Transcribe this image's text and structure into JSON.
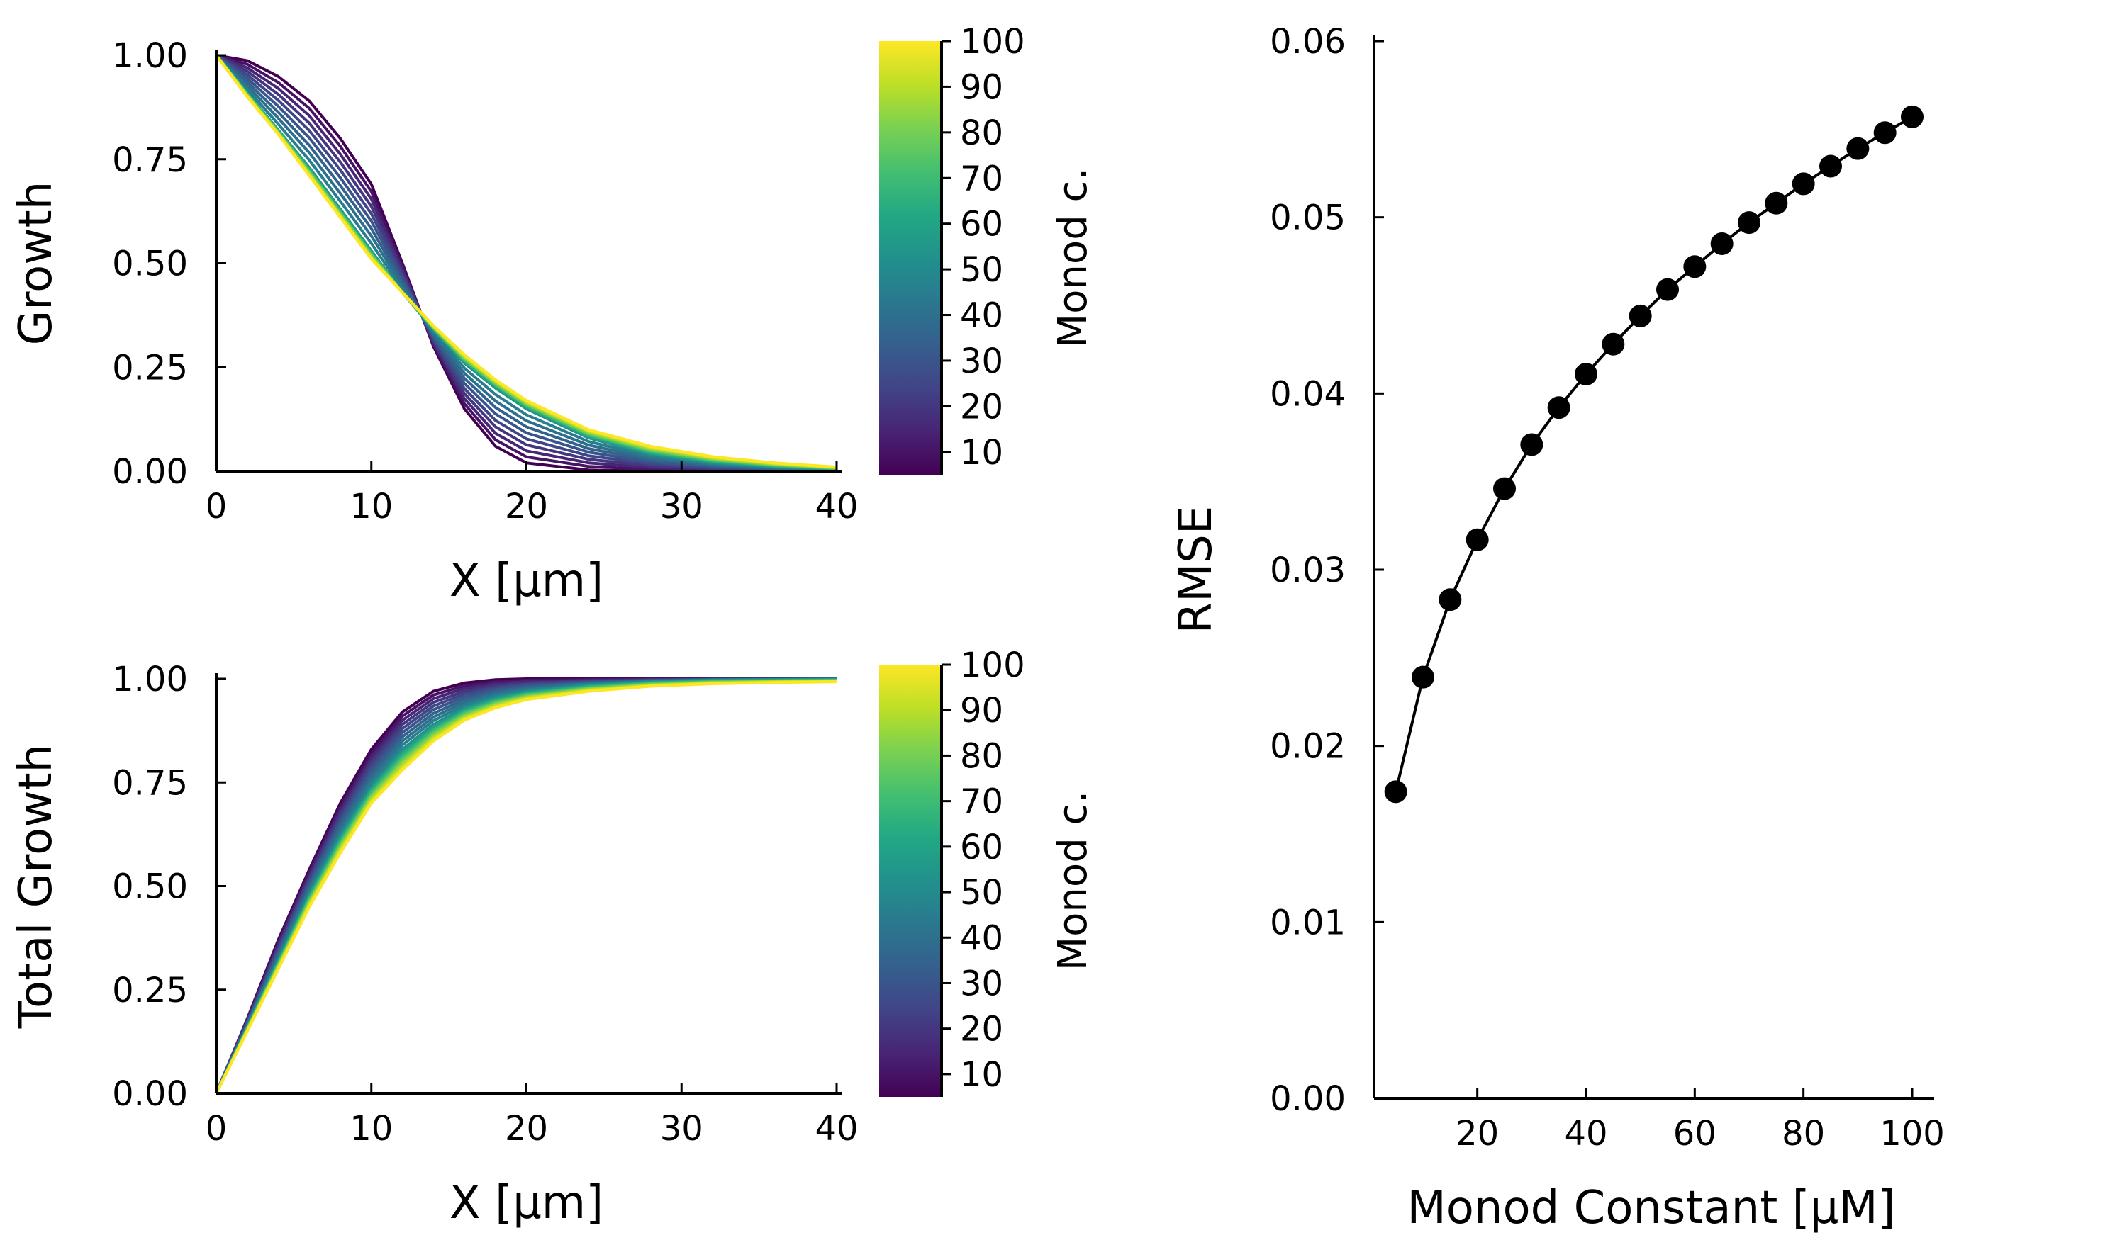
{
  "chart_data": [
    {
      "id": "growth",
      "type": "line",
      "title": "",
      "xlabel": "X [μm]",
      "ylabel": "Growth",
      "xlim": [
        0,
        40
      ],
      "ylim": [
        0,
        1
      ],
      "xticks": [
        0,
        10,
        20,
        30,
        40
      ],
      "yticks": [
        0.0,
        0.25,
        0.5,
        0.75,
        1.0
      ],
      "xtick_labels": [
        "0",
        "10",
        "20",
        "30",
        "40"
      ],
      "ytick_labels": [
        "0.00",
        "0.25",
        "0.50",
        "0.75",
        "1.00"
      ],
      "x": [
        0,
        2,
        4,
        6,
        8,
        10,
        12,
        14,
        16,
        18,
        20,
        24,
        28,
        32,
        36,
        40
      ],
      "series": [
        {
          "monod": 5,
          "values": [
            1.0,
            0.987,
            0.949,
            0.89,
            0.8,
            0.69,
            0.5,
            0.3,
            0.15,
            0.06,
            0.02,
            0.003,
            0.0,
            0.0,
            0.0,
            0.0
          ]
        },
        {
          "monod": 50,
          "values": [
            1.0,
            0.91,
            0.82,
            0.73,
            0.63,
            0.53,
            0.43,
            0.34,
            0.26,
            0.2,
            0.15,
            0.08,
            0.04,
            0.02,
            0.01,
            0.005
          ]
        },
        {
          "monod": 100,
          "values": [
            1.0,
            0.9,
            0.81,
            0.71,
            0.61,
            0.51,
            0.43,
            0.35,
            0.28,
            0.22,
            0.17,
            0.1,
            0.06,
            0.035,
            0.02,
            0.01
          ]
        }
      ],
      "colorbar": {
        "label": "Monod c.",
        "min": 5,
        "max": 100,
        "ticks": [
          10,
          20,
          30,
          40,
          50,
          60,
          70,
          80,
          90,
          100
        ],
        "colormap": "viridis"
      }
    },
    {
      "id": "total-growth",
      "type": "line",
      "title": "",
      "xlabel": "X [μm]",
      "ylabel": "Total Growth",
      "xlim": [
        0,
        40
      ],
      "ylim": [
        0,
        1
      ],
      "xticks": [
        0,
        10,
        20,
        30,
        40
      ],
      "yticks": [
        0.0,
        0.25,
        0.5,
        0.75,
        1.0
      ],
      "xtick_labels": [
        "0",
        "10",
        "20",
        "30",
        "40"
      ],
      "ytick_labels": [
        "0.00",
        "0.25",
        "0.50",
        "0.75",
        "1.00"
      ],
      "x": [
        0,
        2,
        4,
        6,
        8,
        10,
        12,
        14,
        16,
        18,
        20,
        24,
        28,
        32,
        36,
        40
      ],
      "series": [
        {
          "monod": 5,
          "values": [
            0.0,
            0.18,
            0.37,
            0.54,
            0.7,
            0.83,
            0.92,
            0.97,
            0.99,
            0.998,
            1.0,
            1.0,
            1.0,
            1.0,
            1.0,
            1.0
          ]
        },
        {
          "monod": 50,
          "values": [
            0.0,
            0.16,
            0.32,
            0.48,
            0.62,
            0.74,
            0.83,
            0.89,
            0.93,
            0.955,
            0.97,
            0.985,
            0.993,
            0.997,
            0.998,
            0.999
          ]
        },
        {
          "monod": 100,
          "values": [
            0.0,
            0.15,
            0.3,
            0.45,
            0.58,
            0.7,
            0.78,
            0.85,
            0.9,
            0.93,
            0.95,
            0.97,
            0.982,
            0.988,
            0.991,
            0.993
          ]
        }
      ],
      "colorbar": {
        "label": "Monod c.",
        "min": 5,
        "max": 100,
        "ticks": [
          10,
          20,
          30,
          40,
          50,
          60,
          70,
          80,
          90,
          100
        ],
        "colormap": "viridis"
      }
    },
    {
      "id": "rmse",
      "type": "line",
      "title": "",
      "xlabel": "Monod Constant [μM]",
      "ylabel": "RMSE",
      "xlim": [
        1,
        103
      ],
      "ylim": [
        0,
        0.06
      ],
      "xticks": [
        20,
        40,
        60,
        80,
        100
      ],
      "yticks": [
        0.0,
        0.01,
        0.02,
        0.03,
        0.04,
        0.05,
        0.06
      ],
      "xtick_labels": [
        "20",
        "40",
        "60",
        "80",
        "100"
      ],
      "ytick_labels": [
        "0.00",
        "0.01",
        "0.02",
        "0.03",
        "0.04",
        "0.05",
        "0.06"
      ],
      "x": [
        5,
        10,
        15,
        20,
        25,
        30,
        35,
        40,
        45,
        50,
        55,
        60,
        65,
        70,
        75,
        80,
        85,
        90,
        95,
        100
      ],
      "values": [
        0.0174,
        0.0239,
        0.0283,
        0.0317,
        0.0346,
        0.0371,
        0.0392,
        0.0411,
        0.0428,
        0.0444,
        0.0459,
        0.0472,
        0.0485,
        0.0497,
        0.0508,
        0.0519,
        0.0529,
        0.0539,
        0.0548,
        0.0557
      ],
      "marker": "circle",
      "color": "#000000"
    }
  ]
}
